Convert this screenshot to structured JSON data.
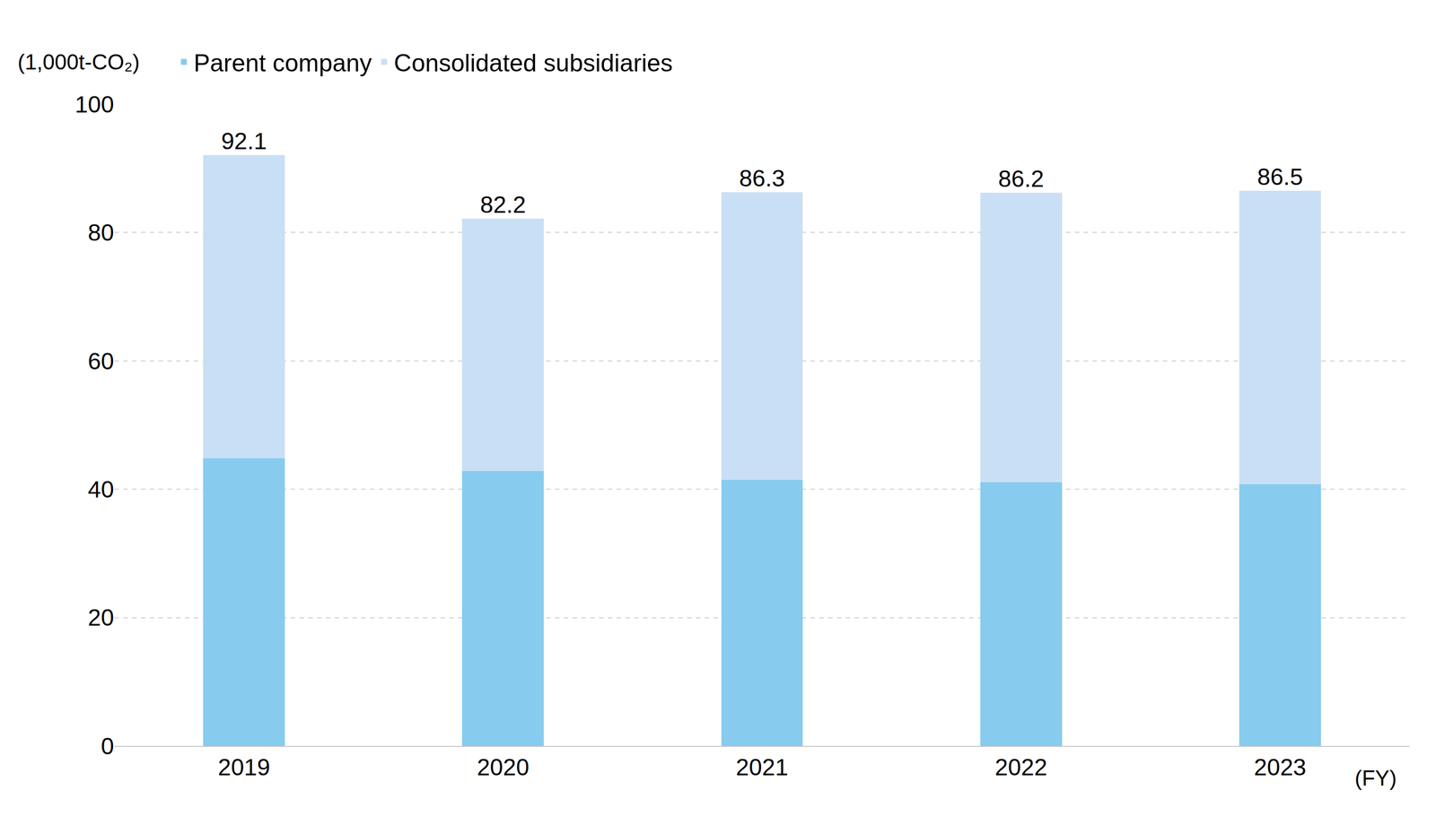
{
  "chart_data": {
    "type": "bar",
    "stacked": true,
    "y_label": "(1,000t-CO₂)",
    "x_label": "(FY)",
    "categories": [
      "2019",
      "2020",
      "2021",
      "2022",
      "2023"
    ],
    "series": [
      {
        "name": "Parent company",
        "color": "#87cbef",
        "values": [
          44.8,
          42.8,
          41.5,
          41.1,
          40.8
        ]
      },
      {
        "name": "Consolidated subsidiaries",
        "color": "#c9dff5",
        "values": [
          47.3,
          39.4,
          44.8,
          45.1,
          45.7
        ]
      }
    ],
    "totals": [
      92.1,
      82.2,
      86.3,
      86.2,
      86.5
    ],
    "ylim": [
      0,
      100
    ],
    "yticks": [
      0,
      20,
      40,
      60,
      80,
      100
    ],
    "grid": true,
    "legend": "top"
  }
}
